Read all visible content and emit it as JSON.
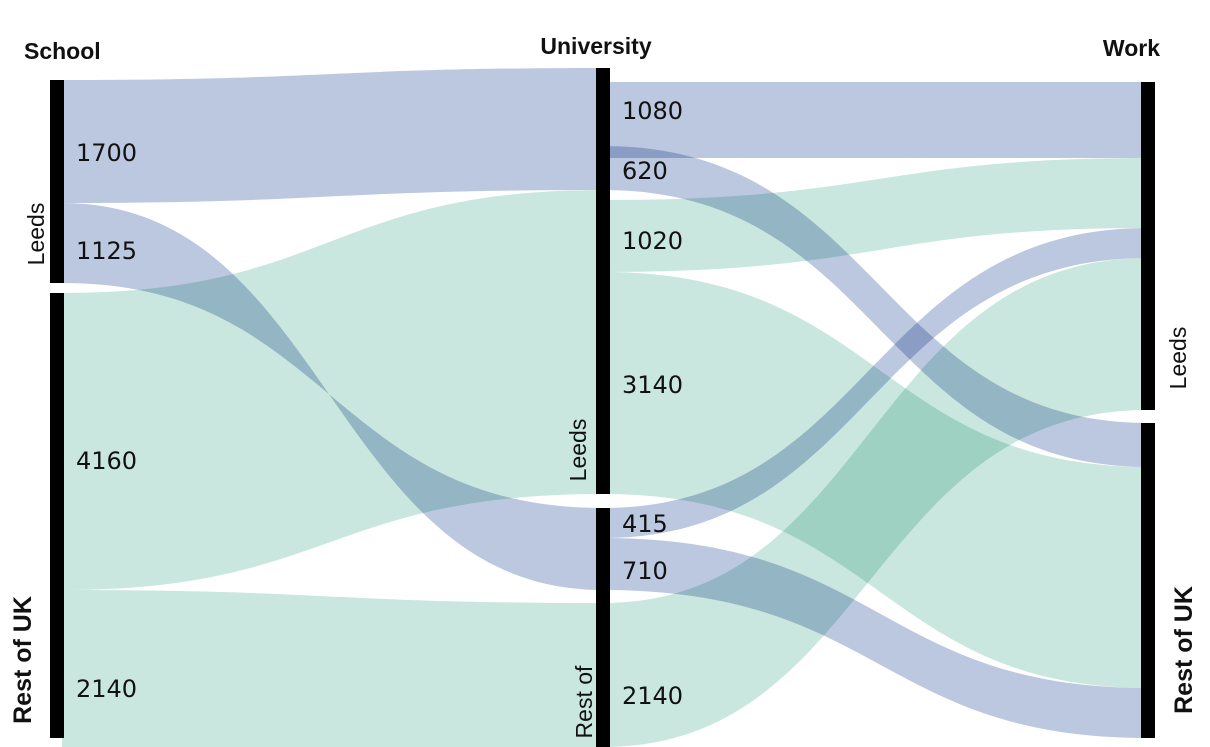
{
  "stages": {
    "school": "School",
    "university": "University",
    "work": "Work"
  },
  "node_labels": {
    "school_leeds": "Leeds",
    "school_rest": "Rest of UK",
    "uni_leeds": "Leeds",
    "uni_rest": "Rest of",
    "work_leeds": "Leeds",
    "work_rest": "Rest of UK"
  },
  "flow_labels": {
    "school_leeds_to_uni_leeds": "1700",
    "school_leeds_to_uni_rest": "1125",
    "school_rest_to_uni_leeds": "4160",
    "school_rest_to_uni_rest": "2140",
    "uni_leeds_blue_to_work_leeds": "1080",
    "uni_leeds_blue_to_work_rest": "620",
    "uni_leeds_green_to_work_leeds": "1020",
    "uni_leeds_green_to_work_rest": "3140",
    "uni_rest_blue_to_work_leeds": "415",
    "uni_rest_blue_to_work_rest": "710",
    "uni_rest_green_to_work_leeds": "2140"
  },
  "colors": {
    "school_leeds_origin": "#b0bedb",
    "school_rest_origin": "#bfe3d8",
    "node_bar": "#000000"
  }
}
